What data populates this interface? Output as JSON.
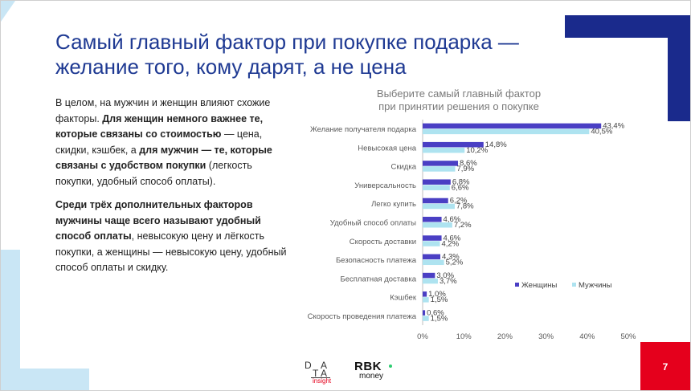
{
  "slide": {
    "title_line1": "Самый главный фактор при покупке подарка —",
    "title_line2": "желание того, кому дарят, а не цена",
    "page_number": "7",
    "colors": {
      "title": "#1f3a93",
      "navy_accent": "#1a2a8c",
      "light_blue_accent": "#c9e6f5",
      "red_box": "#e5001c",
      "women_bar": "#4a3fc4",
      "men_bar": "#aee3f0"
    }
  },
  "text": {
    "p1_a": "В целом, на мужчин и женщин влияют схожие факторы. ",
    "p1_b": "Для женщин немного важнее те, которые связаны со стоимостью",
    "p1_c": " — цена, скидки, кэшбек, а ",
    "p1_d": "для мужчин — те, которые связаны с удобством покупки",
    "p1_e": " (легкость покупки, удобный способ оплаты).",
    "p2_a": "Среди трёх дополнительных факторов мужчины чаще всего называют удобный способ оплаты",
    "p2_b": ", невысокую цену и лёгкость покупки, а женщины — невысокую цену, удобный способ оплаты и скидку."
  },
  "logos": {
    "data_letters": [
      "D",
      "A",
      "T",
      "A"
    ],
    "data_sub": "insight",
    "rbk_main": "RBK",
    "rbk_sub": "money"
  },
  "chart_data": {
    "type": "bar",
    "orientation": "horizontal",
    "title_line1": "Выберите самый главный фактор",
    "title_line2": "при принятии решения о покупке",
    "categories": [
      "Желание получателя подарка",
      "Невысокая цена",
      "Скидка",
      "Универсальность",
      "Легко купить",
      "Удобный способ оплаты",
      "Скорость доставки",
      "Безопасность платежа",
      "Бесплатная доставка",
      "Кэшбек",
      "Скорость проведения платежа"
    ],
    "series": [
      {
        "name": "Женщины",
        "values": [
          43.4,
          14.8,
          8.6,
          6.8,
          6.2,
          4.6,
          4.6,
          4.3,
          3.0,
          1.0,
          0.6
        ]
      },
      {
        "name": "Мужчины",
        "values": [
          40.5,
          10.2,
          7.9,
          6.6,
          7.8,
          7.2,
          4.2,
          5.2,
          3.7,
          1.5,
          1.5
        ]
      }
    ],
    "value_labels": {
      "Женщины": [
        "43,4%",
        "14,8%",
        "8,6%",
        "6,8%",
        "6,2%",
        "4,6%",
        "4,6%",
        "4,3%",
        "3,0%",
        "1,0%",
        "0,6%"
      ],
      "Мужчины": [
        "40,5%",
        "10,2%",
        "7,9%",
        "6,6%",
        "7,8%",
        "7,2%",
        "4,2%",
        "5,2%",
        "3,7%",
        "1,5%",
        "1,5%"
      ]
    },
    "xlim": [
      0,
      50
    ],
    "xticks": [
      0,
      10,
      20,
      30,
      40,
      50
    ],
    "xtick_labels": [
      "0%",
      "10%",
      "20%",
      "30%",
      "40%",
      "50%"
    ],
    "legend_position": "inside-right",
    "grid": false
  }
}
